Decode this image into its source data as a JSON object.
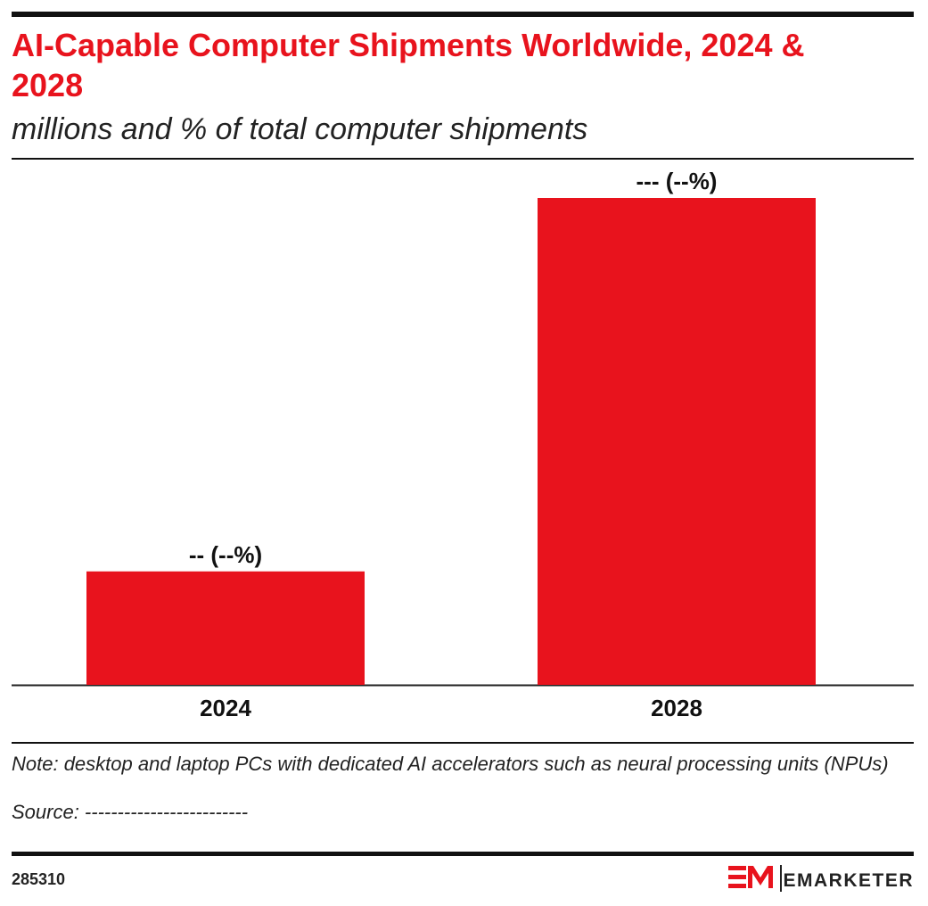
{
  "chart_data": {
    "type": "bar",
    "title": "AI-Capable Computer Shipments Worldwide, 2024 & 2028",
    "subtitle": "millions and % of total computer shipments",
    "categories": [
      "2024",
      "2028"
    ],
    "values": [
      48,
      206
    ],
    "value_labels": [
      "-- (--%)",
      "--- (--%)"
    ],
    "color": "#e8131d",
    "note": "Note: desktop and laptop PCs with dedicated AI accelerators such as neural processing units (NPUs)",
    "source": "Source: -------------------------",
    "chart_id": "285310",
    "brand": "EMARKETER"
  }
}
